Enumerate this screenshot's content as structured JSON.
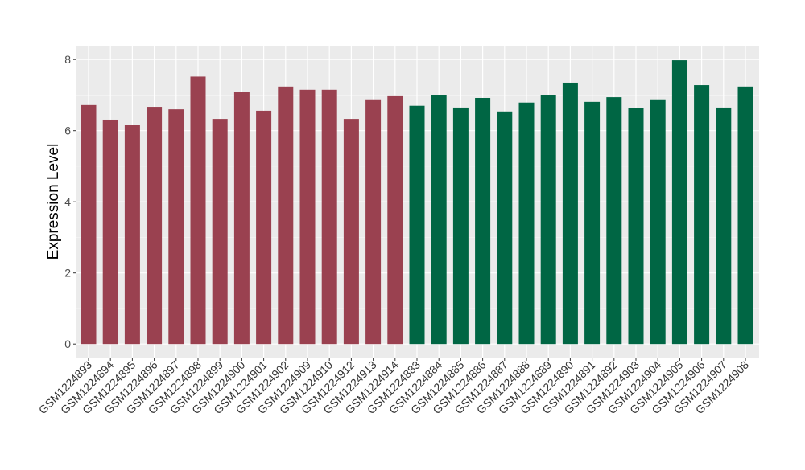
{
  "chart_data": {
    "type": "bar",
    "title": "",
    "xlabel": "",
    "ylabel": "Expression Level",
    "ylim": [
      0,
      8.4
    ],
    "yticks": [
      0,
      2,
      4,
      6,
      8
    ],
    "grid": true,
    "legend": "none",
    "categories": [
      "GSM1224893",
      "GSM1224894",
      "GSM1224895",
      "GSM1224896",
      "GSM1224897",
      "GSM1224898",
      "GSM1224899",
      "GSM1224900",
      "GSM1224901",
      "GSM1224902",
      "GSM1224909",
      "GSM1224910",
      "GSM1224912",
      "GSM1224913",
      "GSM1224914",
      "GSM1224883",
      "GSM1224884",
      "GSM1224885",
      "GSM1224886",
      "GSM1224887",
      "GSM1224888",
      "GSM1224889",
      "GSM1224890",
      "GSM1224891",
      "GSM1224892",
      "GSM1224903",
      "GSM1224904",
      "GSM1224905",
      "GSM1224906",
      "GSM1224907",
      "GSM1224908"
    ],
    "values": [
      6.72,
      6.31,
      6.17,
      6.67,
      6.6,
      7.52,
      6.33,
      7.08,
      6.56,
      7.24,
      7.15,
      7.15,
      6.33,
      6.88,
      6.99,
      6.7,
      7.01,
      6.65,
      6.92,
      6.54,
      6.79,
      7.01,
      7.35,
      6.81,
      6.94,
      6.63,
      6.88,
      7.98,
      7.28,
      6.65,
      7.24
    ],
    "groups": [
      0,
      0,
      0,
      0,
      0,
      0,
      0,
      0,
      0,
      0,
      0,
      0,
      0,
      0,
      0,
      1,
      1,
      1,
      1,
      1,
      1,
      1,
      1,
      1,
      1,
      1,
      1,
      1,
      1,
      1,
      1
    ],
    "group_colors": [
      "#9A4150",
      "#006644"
    ]
  }
}
